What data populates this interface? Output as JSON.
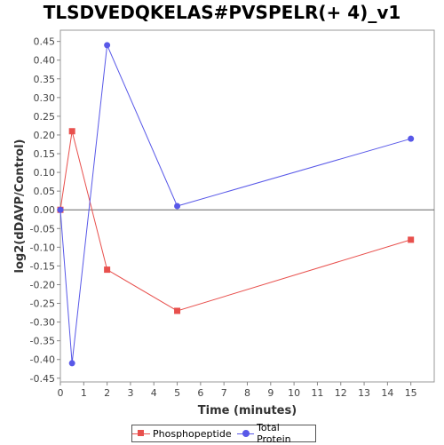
{
  "chart_data": {
    "type": "line",
    "title": "TLSDVEDQKELAS#PVSPELR(+ 4)_v1",
    "xlabel": "Time (minutes)",
    "ylabel": "log2(dDAVP/Control)",
    "xlim": [
      0,
      16
    ],
    "ylim": [
      -0.46,
      0.48
    ],
    "x_ticks": [
      0,
      1,
      2,
      3,
      4,
      5,
      6,
      7,
      8,
      9,
      10,
      11,
      12,
      13,
      14,
      15
    ],
    "y_ticks": [
      -0.45,
      -0.4,
      -0.35,
      -0.3,
      -0.25,
      -0.2,
      -0.15,
      -0.1,
      -0.05,
      0.0,
      0.05,
      0.1,
      0.15,
      0.2,
      0.25,
      0.3,
      0.35,
      0.4,
      0.45
    ],
    "grid": false,
    "legend_position": "bottom",
    "series": [
      {
        "name": "Phosphopeptide",
        "color": "#e8504d",
        "marker": "square",
        "x": [
          0,
          0.5,
          2,
          5,
          15
        ],
        "y": [
          0.0,
          0.21,
          -0.16,
          -0.27,
          -0.08
        ]
      },
      {
        "name": "Total Protein",
        "color": "#5858e8",
        "marker": "circle",
        "x": [
          0,
          0.5,
          2,
          5,
          15
        ],
        "y": [
          0.0,
          -0.41,
          0.44,
          0.01,
          0.19
        ]
      }
    ]
  },
  "legend": {
    "items": [
      {
        "label": "Phosphopeptide",
        "color": "#e8504d",
        "marker": "square"
      },
      {
        "label": "Total Protein",
        "color": "#5858e8",
        "marker": "circle"
      }
    ]
  }
}
